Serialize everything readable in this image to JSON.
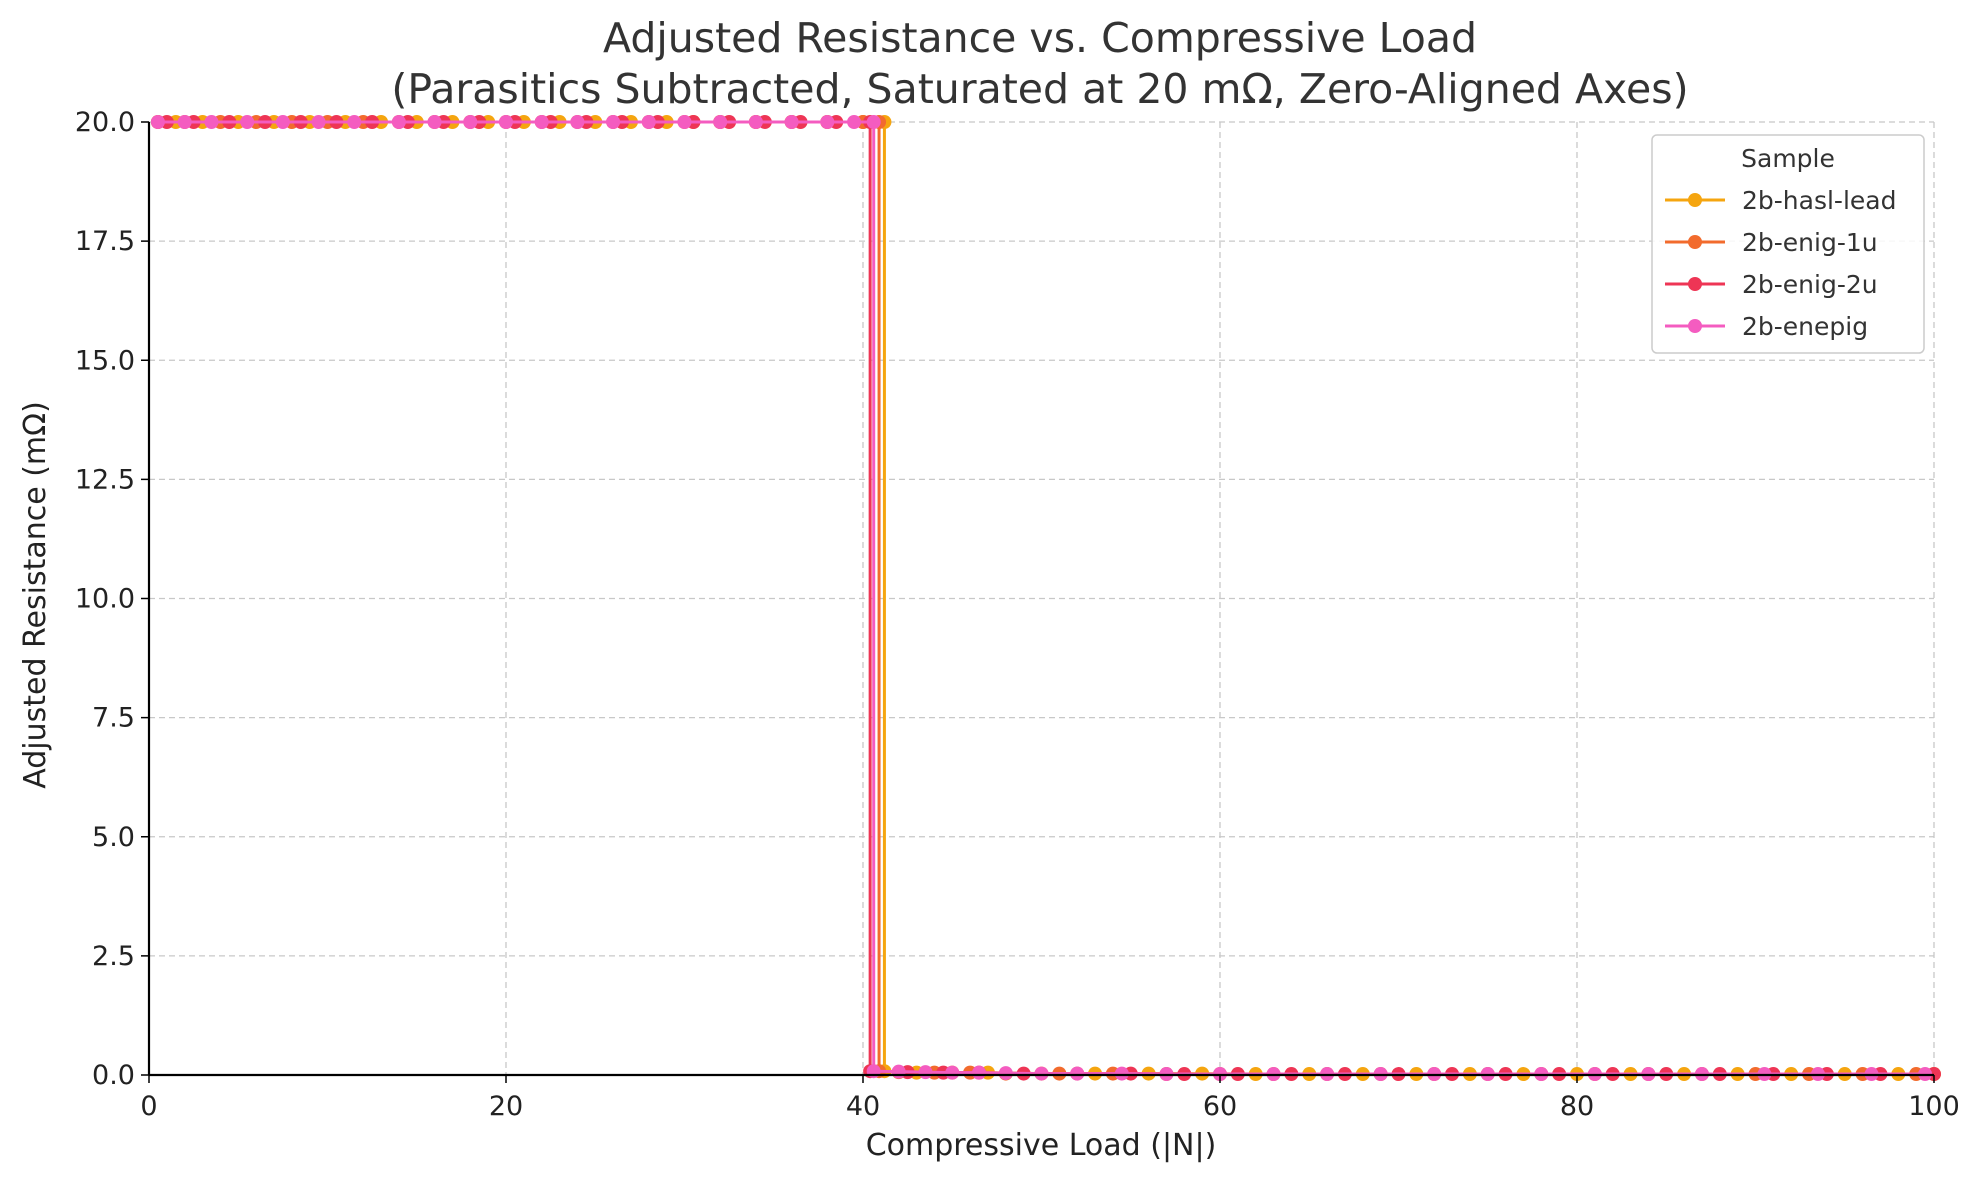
{
  "chart_data": {
    "type": "line",
    "title": "Adjusted Resistance vs. Compressive Load",
    "subtitle": "(Parasitics Subtracted, Saturated at 20 mΩ, Zero-Aligned Axes)",
    "xlabel": "Compressive Load (|N|)",
    "ylabel": "Adjusted Resistance (mΩ)",
    "xlim": [
      0,
      100
    ],
    "ylim": [
      0,
      20
    ],
    "x_ticks": [
      "0",
      "20",
      "40",
      "60",
      "80",
      "100"
    ],
    "y_ticks": [
      "0.0",
      "2.5",
      "5.0",
      "7.5",
      "10.0",
      "12.5",
      "15.0",
      "17.5",
      "20.0"
    ],
    "grid": true,
    "legend": {
      "title": "Sample",
      "placement": "top-right"
    },
    "series": [
      {
        "name": "2b-hasl-lead",
        "color": "#f5a50f",
        "x": [
          0.5,
          1.5,
          3,
          5,
          7,
          9,
          11,
          13,
          15,
          17,
          19,
          21,
          23,
          25,
          27,
          29,
          30.5,
          32,
          34,
          36,
          38,
          40,
          41.2,
          41.2,
          43,
          45,
          47,
          50,
          53,
          56,
          59,
          62,
          65,
          68,
          71,
          74,
          77,
          80,
          83,
          86,
          89,
          92,
          95,
          98,
          100
        ],
        "y": [
          20,
          20,
          20,
          20,
          20,
          20,
          20,
          20,
          20,
          20,
          20,
          20,
          20,
          20,
          20,
          20,
          20,
          20,
          20,
          20,
          20,
          20,
          20,
          0.08,
          0.05,
          0.05,
          0.05,
          0.03,
          0.03,
          0.03,
          0.03,
          0.02,
          0.02,
          0.02,
          0.02,
          0.02,
          0.02,
          0.02,
          0.02,
          0.02,
          0.02,
          0.02,
          0.02,
          0.02,
          0.02
        ]
      },
      {
        "name": "2b-enig-1u",
        "color": "#f26b2d",
        "x": [
          0.5,
          2,
          4,
          6,
          8,
          10,
          12,
          14,
          16,
          18,
          20,
          22,
          24,
          26,
          28,
          30,
          32,
          34,
          36,
          38,
          40,
          40.9,
          40.9,
          42,
          44,
          46,
          48,
          51,
          54,
          57,
          60,
          63,
          66,
          69,
          72,
          75,
          78,
          81,
          84,
          87,
          90,
          93,
          96,
          99
        ],
        "y": [
          20,
          20,
          20,
          20,
          20,
          20,
          20,
          20,
          20,
          20,
          20,
          20,
          20,
          20,
          20,
          20,
          20,
          20,
          20,
          20,
          20,
          20,
          0.08,
          0.06,
          0.05,
          0.05,
          0.03,
          0.03,
          0.03,
          0.02,
          0.02,
          0.02,
          0.02,
          0.02,
          0.02,
          0.02,
          0.02,
          0.02,
          0.02,
          0.02,
          0.02,
          0.02,
          0.02,
          0.02
        ]
      },
      {
        "name": "2b-enig-2u",
        "color": "#ee3555",
        "x": [
          1,
          2.5,
          4.5,
          6.5,
          8.5,
          10.5,
          12.5,
          14.5,
          16.5,
          18.5,
          20.5,
          22.5,
          24.5,
          26.5,
          28.5,
          30.5,
          32.5,
          34.5,
          36.5,
          38.5,
          40.4,
          40.4,
          42.5,
          44.5,
          46.5,
          49,
          52,
          55,
          58,
          61,
          64,
          67,
          70,
          73,
          76,
          79,
          82,
          85,
          88,
          91,
          94,
          97,
          100
        ],
        "y": [
          20,
          20,
          20,
          20,
          20,
          20,
          20,
          20,
          20,
          20,
          20,
          20,
          20,
          20,
          20,
          20,
          20,
          20,
          20,
          20,
          20,
          0.08,
          0.06,
          0.05,
          0.05,
          0.03,
          0.03,
          0.03,
          0.02,
          0.02,
          0.02,
          0.02,
          0.02,
          0.02,
          0.02,
          0.02,
          0.02,
          0.02,
          0.02,
          0.02,
          0.02,
          0.02,
          0.02
        ]
      },
      {
        "name": "2b-enepig",
        "color": "#f45cc0",
        "x": [
          0.5,
          2,
          3.5,
          5.5,
          7.5,
          9.5,
          11.5,
          14,
          16,
          18,
          20,
          22,
          24,
          26,
          28,
          30,
          32,
          34,
          36,
          38,
          39.5,
          40.6,
          40.6,
          42,
          43.5,
          45,
          46.5,
          48,
          50,
          52,
          54.5,
          57,
          60,
          63,
          66,
          69,
          72,
          75,
          78,
          81,
          84,
          87,
          90.5,
          93.5,
          96.5,
          99.5
        ],
        "y": [
          20,
          20,
          20,
          20,
          20,
          20,
          20,
          20,
          20,
          20,
          20,
          20,
          20,
          20,
          20,
          20,
          20,
          20,
          20,
          20,
          20,
          20,
          0.08,
          0.07,
          0.06,
          0.05,
          0.05,
          0.04,
          0.03,
          0.03,
          0.03,
          0.02,
          0.02,
          0.02,
          0.02,
          0.02,
          0.02,
          0.02,
          0.02,
          0.02,
          0.02,
          0.02,
          0.02,
          0.02,
          0.02,
          0.02
        ]
      }
    ]
  }
}
